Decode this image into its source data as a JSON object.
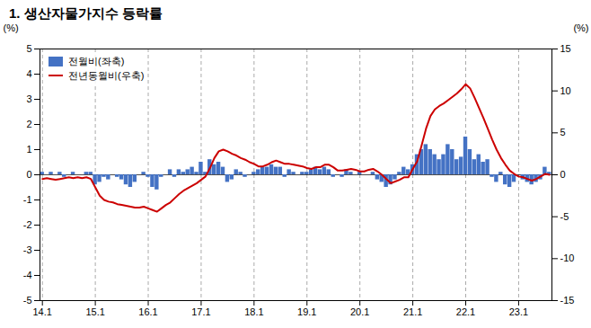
{
  "chart_data": {
    "type": "bar",
    "title": "1. 생산자물가지수 등락률",
    "ylabel": "(%)",
    "y2label": "(%)",
    "categories": [
      "14.1",
      null,
      null,
      null,
      null,
      null,
      null,
      null,
      null,
      null,
      null,
      null,
      "15.1",
      null,
      null,
      null,
      null,
      null,
      null,
      null,
      null,
      null,
      null,
      null,
      "16.1",
      null,
      null,
      null,
      null,
      null,
      null,
      null,
      null,
      null,
      null,
      null,
      "17.1",
      null,
      null,
      null,
      null,
      null,
      null,
      null,
      null,
      null,
      null,
      null,
      "18.1",
      null,
      null,
      null,
      null,
      null,
      null,
      null,
      null,
      null,
      null,
      null,
      "19.1",
      null,
      null,
      null,
      null,
      null,
      null,
      null,
      null,
      null,
      null,
      null,
      "20.1",
      null,
      null,
      null,
      null,
      null,
      null,
      null,
      null,
      null,
      null,
      null,
      "21.1",
      null,
      null,
      null,
      null,
      null,
      null,
      null,
      null,
      null,
      null,
      null,
      "22.1",
      null,
      null,
      null,
      null,
      null,
      null,
      null,
      null,
      null,
      null,
      null,
      "23.1",
      null,
      null,
      null,
      null,
      null,
      null,
      null
    ],
    "series": [
      {
        "name": "전월비(좌축)",
        "type": "bar",
        "color": "#4472C4",
        "values": [
          0.1,
          0.0,
          0.1,
          0.0,
          0.1,
          -0.1,
          0.0,
          0.1,
          0.0,
          0.0,
          0.1,
          0.1,
          -0.4,
          -0.3,
          -0.1,
          -0.2,
          0.0,
          -0.1,
          -0.2,
          -0.4,
          -0.5,
          -0.3,
          0.0,
          0.1,
          -0.1,
          -0.5,
          -0.6,
          -0.1,
          0.0,
          0.2,
          -0.1,
          0.2,
          0.1,
          0.2,
          0.3,
          0.1,
          0.5,
          0.1,
          0.6,
          0.4,
          0.5,
          0.3,
          -0.3,
          -0.2,
          0.2,
          0.1,
          -0.1,
          0.0,
          0.1,
          0.2,
          0.3,
          0.3,
          0.4,
          0.3,
          0.3,
          -0.1,
          0.2,
          0.1,
          0.0,
          0.1,
          0.1,
          0.2,
          0.3,
          0.2,
          0.3,
          0.2,
          -0.1,
          0.0,
          -0.1,
          0.2,
          0.1,
          0.0,
          0.1,
          0.0,
          0.0,
          0.1,
          -0.2,
          -0.3,
          -0.5,
          -0.4,
          -0.2,
          0.1,
          0.3,
          0.2,
          0.4,
          0.8,
          1.0,
          1.2,
          1.0,
          0.8,
          0.6,
          0.8,
          1.2,
          1.0,
          0.6,
          0.7,
          1.5,
          1.0,
          0.6,
          0.8,
          0.5,
          0.6,
          -0.1,
          -0.3,
          0.1,
          -0.4,
          -0.5,
          -0.3,
          0.0,
          -0.2,
          -0.3,
          -0.4,
          -0.3,
          -0.2,
          0.3,
          0.1
        ]
      },
      {
        "name": "전년동월비(우축)",
        "type": "line",
        "axis": "y2",
        "color": "#CC0000",
        "values": [
          -0.5,
          -0.4,
          -0.5,
          -0.6,
          -0.5,
          -0.4,
          -0.3,
          -0.4,
          -0.3,
          -0.4,
          -0.3,
          -0.5,
          -1.5,
          -2.5,
          -3.0,
          -3.2,
          -3.3,
          -3.5,
          -3.6,
          -3.7,
          -3.8,
          -3.9,
          -3.9,
          -3.8,
          -4.0,
          -4.2,
          -4.4,
          -4.0,
          -3.6,
          -3.3,
          -2.8,
          -2.3,
          -1.9,
          -1.6,
          -1.3,
          -1.0,
          -0.6,
          -0.2,
          0.8,
          2.0,
          2.8,
          3.0,
          2.8,
          2.5,
          2.3,
          2.0,
          1.8,
          1.5,
          1.3,
          1.0,
          1.0,
          1.2,
          1.5,
          1.7,
          1.5,
          1.3,
          1.3,
          1.2,
          1.1,
          1.0,
          0.8,
          0.7,
          0.9,
          0.9,
          1.2,
          1.2,
          0.9,
          0.5,
          0.5,
          0.6,
          0.7,
          0.6,
          0.4,
          0.4,
          0.6,
          0.7,
          0.4,
          0.0,
          -0.5,
          -1.0,
          -0.8,
          -0.6,
          -0.3,
          -0.3,
          0.7,
          1.6,
          3.5,
          5.5,
          7.0,
          7.8,
          8.2,
          8.5,
          8.9,
          9.3,
          9.7,
          10.2,
          10.8,
          10.3,
          9.2,
          8.0,
          6.8,
          5.5,
          4.2,
          3.0,
          2.0,
          1.2,
          0.5,
          0.1,
          -0.2,
          -0.3,
          -0.5,
          -0.7,
          -0.5,
          -0.2,
          0.1,
          0.0
        ]
      }
    ],
    "ylim": [
      -5,
      5
    ],
    "yticks": [
      -5,
      -4,
      -3,
      -2,
      -1,
      0,
      1,
      2,
      3,
      4,
      5
    ],
    "y2lim": [
      -15,
      15
    ],
    "y2ticks": [
      -15,
      -10,
      -5,
      0,
      5,
      10,
      15
    ],
    "grid": true,
    "legend": "upper left"
  }
}
